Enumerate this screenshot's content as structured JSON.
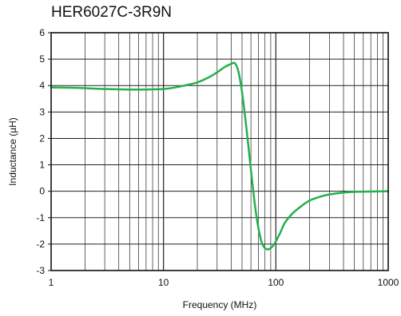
{
  "chart_data": {
    "type": "line",
    "title": "HER6027C-3R9N",
    "xlabel": "Frequency (MHz)",
    "ylabel": "Inductance (µH)",
    "x_scale": "log",
    "xlim": [
      1,
      1000
    ],
    "ylim": [
      -3,
      6
    ],
    "x_ticks": [
      "1",
      "10",
      "100",
      "1000"
    ],
    "y_ticks": [
      "-3",
      "-2",
      "-1",
      "0",
      "1",
      "2",
      "3",
      "4",
      "5",
      "6"
    ],
    "grid": true,
    "series": [
      {
        "color": "#22b14c",
        "x": [
          1,
          1.5,
          2,
          3,
          5,
          7,
          10,
          12,
          15,
          20,
          25,
          30,
          35,
          40,
          43,
          46,
          49,
          52,
          56,
          60,
          65,
          70,
          75,
          80,
          85,
          90,
          95,
          100,
          110,
          120,
          140,
          170,
          200,
          250,
          300,
          400,
          500,
          700,
          1000
        ],
        "y": [
          3.93,
          3.92,
          3.9,
          3.87,
          3.85,
          3.85,
          3.87,
          3.91,
          3.99,
          4.12,
          4.3,
          4.5,
          4.7,
          4.82,
          4.85,
          4.6,
          4.0,
          3.2,
          2.0,
          0.8,
          -0.5,
          -1.4,
          -1.95,
          -2.15,
          -2.2,
          -2.15,
          -2.05,
          -1.9,
          -1.55,
          -1.2,
          -0.85,
          -0.55,
          -0.35,
          -0.2,
          -0.12,
          -0.05,
          -0.02,
          -0.01,
          0.0
        ]
      }
    ]
  }
}
